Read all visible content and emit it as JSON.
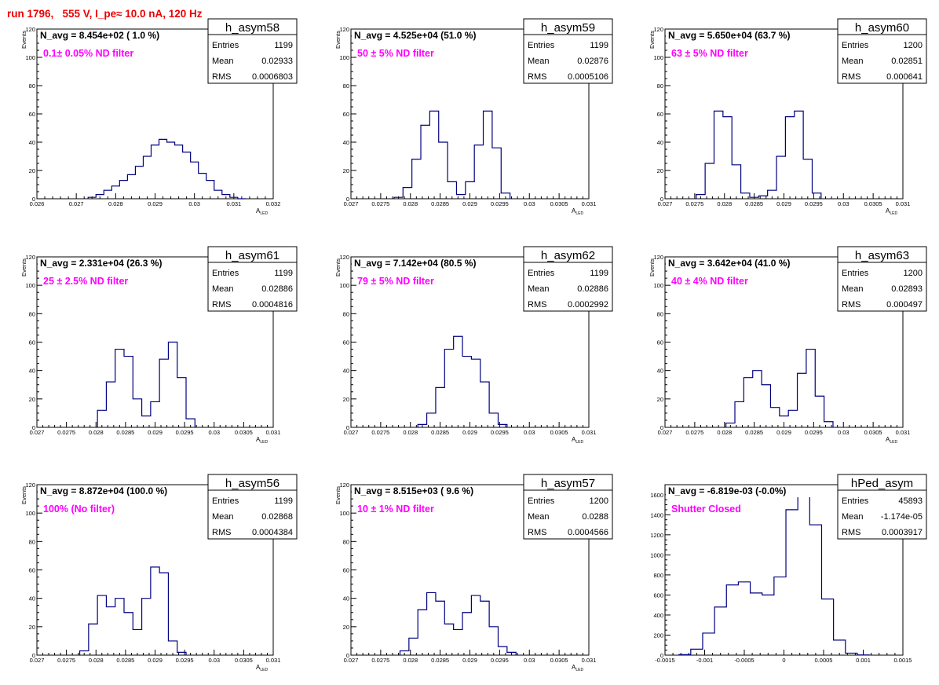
{
  "run_title": "run 1796,   555 V, I_pe≈ 10.0 nA, 120 Hz",
  "colors": {
    "hist_line": "#000080",
    "annotation": "#ff00ff",
    "title": "#ee0000",
    "axis": "#000000"
  },
  "chart_data": [
    {
      "type": "bar",
      "name": "h_asym58",
      "title": "N_avg = 8.454e+02 ( 1.0 %)",
      "annotation": "0.1± 0.05% ND filter",
      "stats": {
        "entries": "1199",
        "mean": "0.02933",
        "rms": "0.0006803"
      },
      "xlabel": "A",
      "xlabel_sub": "LED",
      "ylabel": "Events",
      "xlim": [
        0.026,
        0.032
      ],
      "ylim": [
        0,
        120
      ],
      "xticks": [
        "0.026",
        "0.027",
        "0.028",
        "0.029",
        "0.03",
        "0.031",
        "0.032"
      ],
      "yticks": [
        "0",
        "20",
        "40",
        "60",
        "80",
        "100",
        "120"
      ],
      "x": [
        0.0274,
        0.0276,
        0.0278,
        0.028,
        0.0282,
        0.0284,
        0.0286,
        0.0288,
        0.029,
        0.0292,
        0.0294,
        0.0296,
        0.0298,
        0.03,
        0.0302,
        0.0304,
        0.0306,
        0.0308,
        0.031,
        0.0312
      ],
      "values": [
        1,
        3,
        6,
        9,
        13,
        17,
        23,
        30,
        38,
        42,
        40,
        38,
        33,
        26,
        18,
        13,
        6,
        3,
        1,
        0
      ]
    },
    {
      "type": "bar",
      "name": "h_asym59",
      "title": "N_avg = 4.525e+04 (51.0 %)",
      "annotation": "50 ± 5% ND filter",
      "stats": {
        "entries": "1199",
        "mean": "0.02876",
        "rms": "0.0005106"
      },
      "xlabel": "A",
      "xlabel_sub": "LED",
      "ylabel": "Events",
      "xlim": [
        0.027,
        0.031
      ],
      "ylim": [
        0,
        120
      ],
      "xticks": [
        "0.027",
        "0.0275",
        "0.028",
        "0.0285",
        "0.029",
        "0.0295",
        "0.03",
        "0.0305",
        "0.031"
      ],
      "yticks": [
        "0",
        "20",
        "40",
        "60",
        "80",
        "100",
        "120"
      ],
      "x": [
        0.0278,
        0.02795,
        0.0281,
        0.02825,
        0.0284,
        0.02855,
        0.0287,
        0.02885,
        0.029,
        0.02915,
        0.0293,
        0.02945,
        0.0296
      ],
      "values": [
        1,
        8,
        28,
        52,
        62,
        40,
        12,
        3,
        12,
        38,
        62,
        36,
        4
      ]
    },
    {
      "type": "bar",
      "name": "h_asym60",
      "title": "N_avg = 5.650e+04 (63.7 %)",
      "annotation": "63 ± 5% ND filter",
      "stats": {
        "entries": "1200",
        "mean": "0.02851",
        "rms": "0.000641"
      },
      "xlabel": "A",
      "xlabel_sub": "LED",
      "ylabel": "Events",
      "xlim": [
        0.027,
        0.031
      ],
      "ylim": [
        0,
        120
      ],
      "xticks": [
        "0.027",
        "0.0275",
        "0.028",
        "0.0285",
        "0.029",
        "0.0295",
        "0.03",
        "0.0305",
        "0.031"
      ],
      "yticks": [
        "0",
        "20",
        "40",
        "60",
        "80",
        "100",
        "120"
      ],
      "x": [
        0.0276,
        0.02775,
        0.0279,
        0.02805,
        0.0282,
        0.02835,
        0.0285,
        0.02865,
        0.0288,
        0.02895,
        0.0291,
        0.02925,
        0.0294,
        0.02955
      ],
      "values": [
        3,
        25,
        62,
        58,
        24,
        4,
        1,
        2,
        6,
        30,
        58,
        62,
        28,
        4
      ]
    },
    {
      "type": "bar",
      "name": "h_asym61",
      "title": "N_avg = 2.331e+04 (26.3 %)",
      "annotation": "25 ± 2.5% ND filter",
      "stats": {
        "entries": "1199",
        "mean": "0.02886",
        "rms": "0.0004816"
      },
      "xlabel": "A",
      "xlabel_sub": "LED",
      "ylabel": "Events",
      "xlim": [
        0.027,
        0.031
      ],
      "ylim": [
        0,
        120
      ],
      "xticks": [
        "0.027",
        "0.0275",
        "0.028",
        "0.0285",
        "0.029",
        "0.0295",
        "0.03",
        "0.0305",
        "0.031"
      ],
      "yticks": [
        "0",
        "20",
        "40",
        "60",
        "80",
        "100",
        "120"
      ],
      "x": [
        0.0281,
        0.02825,
        0.0284,
        0.02855,
        0.0287,
        0.02885,
        0.029,
        0.02915,
        0.0293,
        0.02945,
        0.0296
      ],
      "values": [
        12,
        32,
        55,
        50,
        20,
        8,
        18,
        48,
        60,
        35,
        6
      ]
    },
    {
      "type": "bar",
      "name": "h_asym62",
      "title": "N_avg = 7.142e+04 (80.5 %)",
      "annotation": "79 ± 5% ND filter",
      "stats": {
        "entries": "1199",
        "mean": "0.02886",
        "rms": "0.0002992"
      },
      "xlabel": "A",
      "xlabel_sub": "LED",
      "ylabel": "Events",
      "xlim": [
        0.027,
        0.031
      ],
      "ylim": [
        0,
        120
      ],
      "xticks": [
        "0.027",
        "0.0275",
        "0.028",
        "0.0285",
        "0.029",
        "0.0295",
        "0.03",
        "0.0305",
        "0.031"
      ],
      "yticks": [
        "0",
        "20",
        "40",
        "60",
        "80",
        "100",
        "120"
      ],
      "x": [
        0.0282,
        0.02835,
        0.0285,
        0.02865,
        0.0288,
        0.02895,
        0.0291,
        0.02925,
        0.0294,
        0.02955
      ],
      "values": [
        2,
        10,
        28,
        55,
        64,
        50,
        48,
        32,
        10,
        2
      ]
    },
    {
      "type": "bar",
      "name": "h_asym63",
      "title": "N_avg = 3.642e+04 (41.0 %)",
      "annotation": "40 ± 4% ND filter",
      "stats": {
        "entries": "1200",
        "mean": "0.02893",
        "rms": "0.000497"
      },
      "xlabel": "A",
      "xlabel_sub": "LED",
      "ylabel": "Events",
      "xlim": [
        0.027,
        0.031
      ],
      "ylim": [
        0,
        120
      ],
      "xticks": [
        "0.027",
        "0.0275",
        "0.028",
        "0.0285",
        "0.029",
        "0.0295",
        "0.03",
        "0.0305",
        "0.031"
      ],
      "yticks": [
        "0",
        "20",
        "40",
        "60",
        "80",
        "100",
        "120"
      ],
      "x": [
        0.0281,
        0.02825,
        0.0284,
        0.02855,
        0.0287,
        0.02885,
        0.029,
        0.02915,
        0.0293,
        0.02945,
        0.0296,
        0.02975
      ],
      "values": [
        3,
        18,
        35,
        40,
        30,
        14,
        8,
        12,
        38,
        55,
        22,
        4
      ]
    },
    {
      "type": "bar",
      "name": "h_asym56",
      "title": "N_avg = 8.872e+04 (100.0 %)",
      "annotation": "100% (No filter)",
      "stats": {
        "entries": "1199",
        "mean": "0.02868",
        "rms": "0.0004384"
      },
      "xlabel": "A",
      "xlabel_sub": "LED",
      "ylabel": "Events",
      "xlim": [
        0.027,
        0.031
      ],
      "ylim": [
        0,
        120
      ],
      "xticks": [
        "0.027",
        "0.0275",
        "0.028",
        "0.0285",
        "0.029",
        "0.0295",
        "0.03",
        "0.0305",
        "0.031"
      ],
      "yticks": [
        "0",
        "20",
        "40",
        "60",
        "80",
        "100",
        "120"
      ],
      "x": [
        0.0278,
        0.02795,
        0.0281,
        0.02825,
        0.0284,
        0.02855,
        0.0287,
        0.02885,
        0.029,
        0.02915,
        0.0293,
        0.02945
      ],
      "values": [
        3,
        22,
        42,
        34,
        40,
        30,
        18,
        40,
        62,
        58,
        10,
        2
      ]
    },
    {
      "type": "bar",
      "name": "h_asym57",
      "title": "N_avg = 8.515e+03 ( 9.6 %)",
      "annotation": "10 ± 1% ND filter",
      "stats": {
        "entries": "1200",
        "mean": "0.0288",
        "rms": "0.0004566"
      },
      "xlabel": "A",
      "xlabel_sub": "LED",
      "ylabel": "Events",
      "xlim": [
        0.027,
        0.031
      ],
      "ylim": [
        0,
        120
      ],
      "xticks": [
        "0.027",
        "0.0275",
        "0.028",
        "0.0285",
        "0.029",
        "0.0295",
        "0.03",
        "0.0305",
        "0.031"
      ],
      "yticks": [
        "0",
        "20",
        "40",
        "60",
        "80",
        "100",
        "120"
      ],
      "x": [
        0.0279,
        0.02805,
        0.0282,
        0.02835,
        0.0285,
        0.02865,
        0.0288,
        0.02895,
        0.0291,
        0.02925,
        0.0294,
        0.02955,
        0.0297
      ],
      "values": [
        3,
        12,
        32,
        44,
        38,
        22,
        18,
        30,
        42,
        38,
        20,
        6,
        2
      ]
    },
    {
      "type": "bar",
      "name": "hPed_asym",
      "title": "N_avg = -6.819e-03 (-0.0%)",
      "annotation": "Shutter Closed",
      "stats": {
        "entries": "45893",
        "mean": "-1.174e-05",
        "rms": "0.0003917"
      },
      "xlabel": "",
      "xlabel_sub": "",
      "ylabel": "",
      "xlim": [
        -0.0015,
        0.0015
      ],
      "ylim": [
        0,
        1700
      ],
      "xticks": [
        "-0.0015",
        "-0.001",
        "-0.0005",
        "0",
        "0.0005",
        "0.001",
        "0.0015"
      ],
      "yticks": [
        "0",
        "200",
        "400",
        "600",
        "800",
        "1000",
        "1200",
        "1400",
        "1600"
      ],
      "x": [
        -0.00125,
        -0.0011,
        -0.00095,
        -0.0008,
        -0.00065,
        -0.0005,
        -0.00035,
        -0.0002,
        -5e-05,
        0.0001,
        0.00025,
        0.0004,
        0.00055,
        0.0007,
        0.00085,
        0.001
      ],
      "values": [
        5,
        60,
        220,
        480,
        700,
        730,
        620,
        600,
        780,
        1450,
        1650,
        1300,
        560,
        150,
        20,
        2
      ]
    }
  ]
}
